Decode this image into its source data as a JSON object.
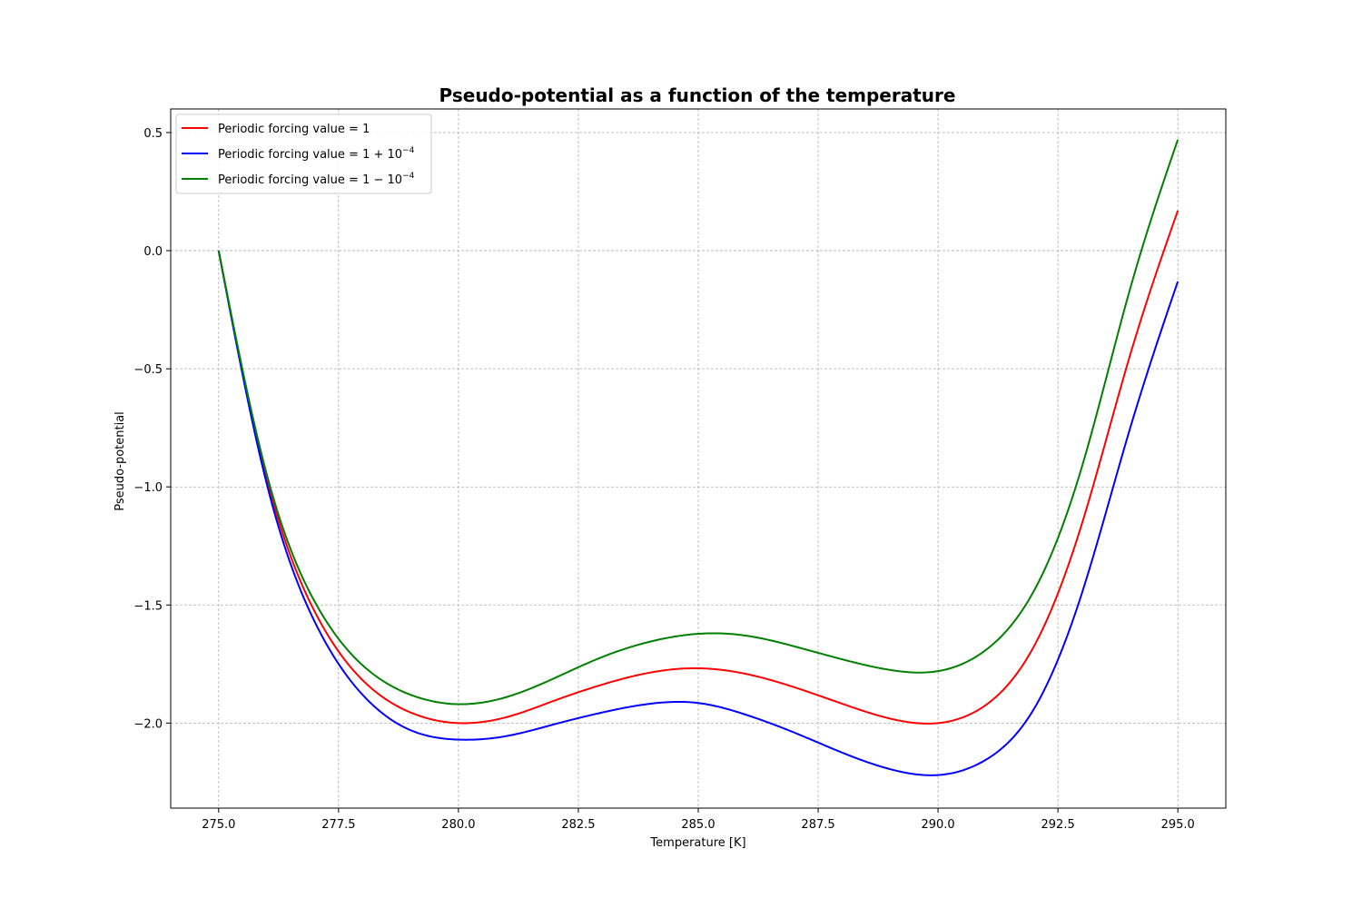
{
  "chart_data": {
    "type": "line",
    "title": "Pseudo-potential as a function of the temperature",
    "xlabel": "Temperature [K]",
    "ylabel": "Pseudo-potential",
    "xlim": [
      274.0,
      296.0
    ],
    "ylim": [
      -2.36,
      0.6
    ],
    "x_ticks": [
      275.0,
      277.5,
      280.0,
      282.5,
      285.0,
      287.5,
      290.0,
      292.5,
      295.0
    ],
    "x_tick_labels": [
      "275.0",
      "277.5",
      "280.0",
      "282.5",
      "285.0",
      "287.5",
      "290.0",
      "292.5",
      "295.0"
    ],
    "y_ticks": [
      0.5,
      0.0,
      -0.5,
      -1.0,
      -1.5,
      -2.0
    ],
    "y_tick_labels": [
      "0.5",
      "0.0",
      "−0.5",
      "−1.0",
      "−1.5",
      "−2.0"
    ],
    "grid": true,
    "legend_position": "top-left",
    "series": [
      {
        "name": "Periodic forcing value = 1",
        "legend_base": "Periodic forcing value = ",
        "legend_math": "1",
        "legend_sup": "",
        "color": "#ff0000",
        "x": [
          275,
          276,
          277,
          278,
          279,
          280,
          281,
          282,
          283,
          284,
          285,
          286,
          287,
          288,
          289,
          290,
          291,
          292,
          293,
          294,
          295
        ],
        "y": [
          0.0,
          -0.963,
          -1.527,
          -1.818,
          -1.955,
          -2.0,
          -1.975,
          -1.905,
          -1.837,
          -1.786,
          -1.768,
          -1.792,
          -1.848,
          -1.918,
          -1.981,
          -2.0,
          -1.923,
          -1.675,
          -1.156,
          -0.445,
          0.17
        ]
      },
      {
        "name": "Periodic forcing value = 1 + 10^-4",
        "legend_base": "Periodic forcing value = ",
        "legend_math": "1 + 10",
        "legend_sup": "−4",
        "color": "#0000ff",
        "x": [
          275,
          276,
          277,
          278,
          279,
          280,
          281,
          282,
          283,
          284,
          285,
          286,
          287,
          288,
          289,
          290,
          291,
          292,
          293,
          294,
          295
        ],
        "y": [
          0.0,
          -0.985,
          -1.57,
          -1.88,
          -2.03,
          -2.07,
          -2.055,
          -2.005,
          -1.955,
          -1.918,
          -1.915,
          -1.965,
          -2.04,
          -2.125,
          -2.195,
          -2.22,
          -2.155,
          -1.94,
          -1.45,
          -0.755,
          -0.13
        ]
      },
      {
        "name": "Periodic forcing value = 1 - 10^-4",
        "legend_base": "Periodic forcing value = ",
        "legend_math": "1 − 10",
        "legend_sup": "−4",
        "color": "#008000",
        "x": [
          275,
          276,
          277,
          278,
          279,
          280,
          281,
          282,
          283,
          284,
          285,
          286,
          287,
          288,
          289,
          290,
          291,
          292,
          293,
          294,
          295
        ],
        "y": [
          0.0,
          -0.945,
          -1.485,
          -1.755,
          -1.88,
          -1.92,
          -1.89,
          -1.81,
          -1.72,
          -1.655,
          -1.622,
          -1.63,
          -1.675,
          -1.73,
          -1.775,
          -1.78,
          -1.69,
          -1.44,
          -0.915,
          -0.165,
          0.47
        ]
      }
    ]
  }
}
